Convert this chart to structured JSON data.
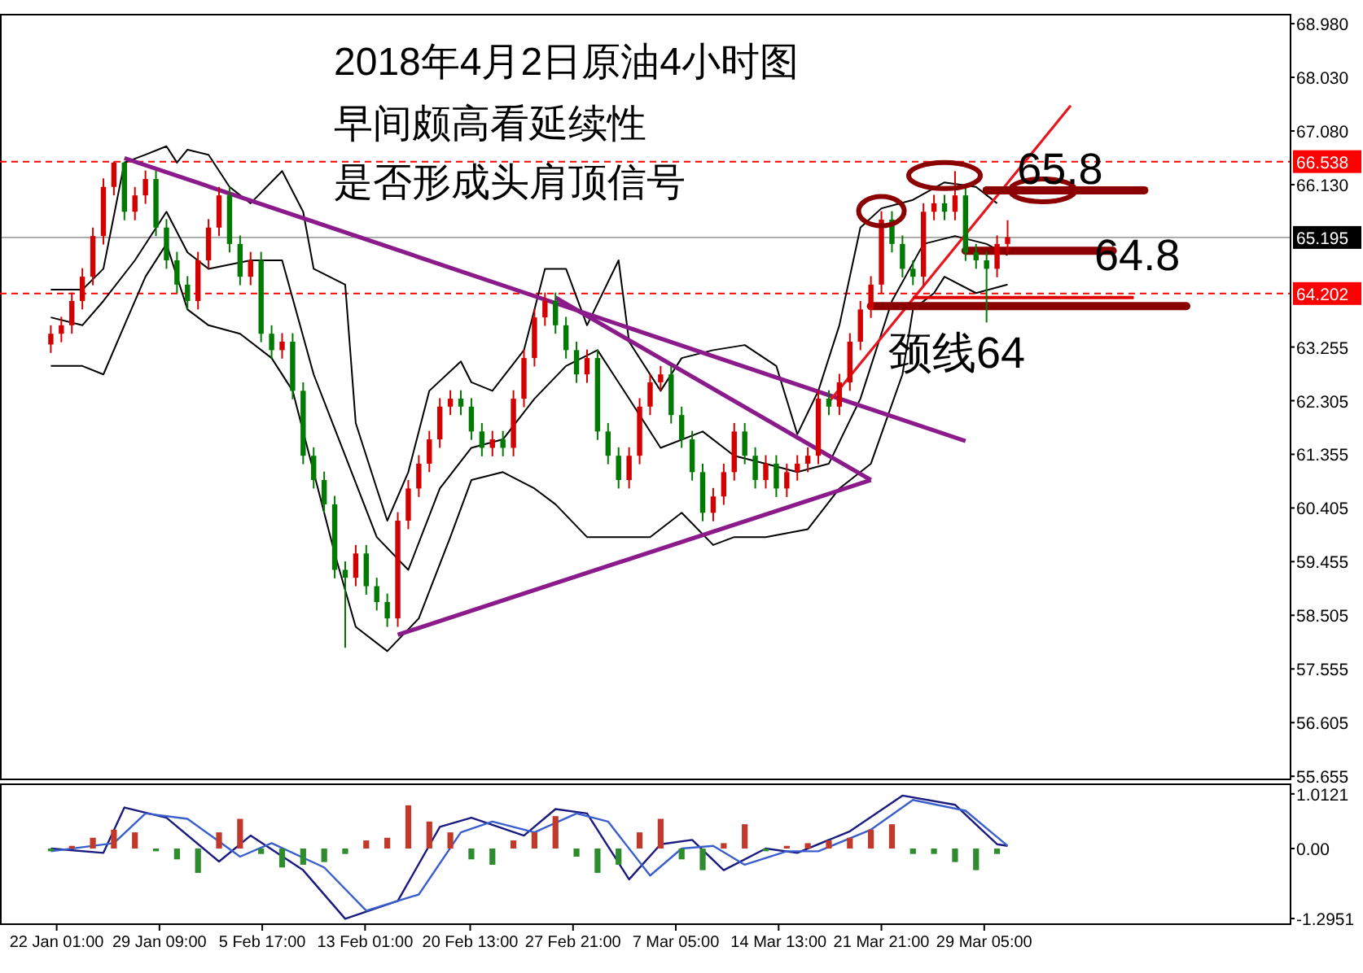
{
  "chart_data": [
    {
      "type": "candlestick",
      "title": "2018年4月2日原油4小时图",
      "annotations": [
        "早间颇高看延续性",
        "是否形成头肩顶信号",
        {
          "text": "65.8",
          "x": "2018-04-05T03:00",
          "y": 66.03
        },
        {
          "text": "64.8",
          "x": "2018-04-07T09:00",
          "y": 64.96
        },
        {
          "text": "颈线64",
          "x": "2018-03-25T15:00",
          "y": 63.98
        }
      ],
      "xlim": [
        "2018-01-18T00:00",
        "2018-04-20T00:00"
      ],
      "ylim": [
        55.6,
        69.14
      ],
      "yticks": [
        {
          "value": 68.98,
          "label": "68.980"
        },
        {
          "value": 68.03,
          "label": "68.030"
        },
        {
          "value": 67.08,
          "label": "67.080"
        },
        {
          "value": 66.13,
          "label": "66.130"
        },
        {
          "value": 63.255,
          "label": "63.255"
        },
        {
          "value": 62.305,
          "label": "62.305"
        },
        {
          "value": 61.355,
          "label": "61.355"
        },
        {
          "value": 60.405,
          "label": "60.405"
        },
        {
          "value": 59.455,
          "label": "59.455"
        },
        {
          "value": 58.505,
          "label": "58.505"
        },
        {
          "value": 57.555,
          "label": "57.555"
        },
        {
          "value": 56.605,
          "label": "56.605"
        },
        {
          "value": 55.655,
          "label": "55.655"
        }
      ],
      "tick_labels": "y",
      "ref_lines": [
        {
          "axis": "y",
          "value": 66.538,
          "label": "66.538",
          "color": "#ff0000",
          "line_style": "dashed"
        },
        {
          "axis": "y",
          "value": 65.195,
          "label": "65.195",
          "color": "#000000",
          "line_style": "solid"
        },
        {
          "axis": "y",
          "value": 64.202,
          "label": "64.202",
          "color": "#ff0000",
          "line_style": "dashed"
        }
      ],
      "series": [
        {
          "x": [
            "2018-01-21T15:00",
            "2018-01-22T09:00",
            "2018-01-23T03:00",
            "2018-01-23T21:00",
            "2018-01-24T15:00",
            "2018-01-25T09:00",
            "2018-01-26T03:00",
            "2018-01-26T21:00",
            "2018-01-27T15:00",
            "2018-01-28T09:00",
            "2018-01-29T03:00",
            "2018-01-29T21:00",
            "2018-01-30T15:00",
            "2018-01-31T09:00",
            "2018-02-01T03:00",
            "2018-02-01T21:00",
            "2018-02-02T15:00",
            "2018-02-03T09:00",
            "2018-02-04T03:00",
            "2018-02-04T21:00",
            "2018-02-05T15:00",
            "2018-02-06T09:00",
            "2018-02-07T03:00",
            "2018-02-07T21:00",
            "2018-02-08T15:00",
            "2018-02-09T09:00",
            "2018-02-10T03:00",
            "2018-02-10T21:00",
            "2018-02-11T15:00",
            "2018-02-12T09:00",
            "2018-02-13T03:00",
            "2018-02-13T21:00",
            "2018-02-14T15:00",
            "2018-02-15T09:00",
            "2018-02-16T03:00",
            "2018-02-16T21:00",
            "2018-02-17T15:00",
            "2018-02-18T09:00",
            "2018-02-19T03:00",
            "2018-02-19T21:00",
            "2018-02-20T15:00",
            "2018-02-21T09:00",
            "2018-02-22T03:00",
            "2018-02-22T21:00",
            "2018-02-23T15:00",
            "2018-02-24T09:00",
            "2018-02-25T03:00",
            "2018-02-25T21:00",
            "2018-02-26T15:00",
            "2018-02-27T09:00",
            "2018-02-28T03:00",
            "2018-02-28T21:00",
            "2018-03-01T15:00",
            "2018-03-02T09:00",
            "2018-03-03T03:00",
            "2018-03-03T21:00",
            "2018-03-04T15:00",
            "2018-03-05T09:00",
            "2018-03-06T03:00",
            "2018-03-06T21:00",
            "2018-03-07T15:00",
            "2018-03-08T09:00",
            "2018-03-09T03:00",
            "2018-03-09T21:00",
            "2018-03-10T15:00",
            "2018-03-11T09:00",
            "2018-03-12T03:00",
            "2018-03-12T21:00",
            "2018-03-13T15:00",
            "2018-03-14T09:00",
            "2018-03-15T03:00",
            "2018-03-15T21:00",
            "2018-03-16T15:00",
            "2018-03-17T09:00",
            "2018-03-18T03:00",
            "2018-03-18T21:00",
            "2018-03-19T15:00",
            "2018-03-20T09:00",
            "2018-03-21T03:00",
            "2018-03-21T21:00",
            "2018-03-22T15:00",
            "2018-03-23T09:00",
            "2018-03-24T03:00",
            "2018-03-24T21:00",
            "2018-03-25T15:00",
            "2018-03-26T09:00",
            "2018-03-27T03:00",
            "2018-03-27T21:00",
            "2018-03-28T15:00",
            "2018-03-29T09:00",
            "2018-03-30T03:00",
            "2018-03-30T21:00"
          ],
          "ohlc": [
            [
              63.3,
              63.64,
              63.15,
              63.49
            ],
            [
              63.49,
              63.79,
              63.34,
              63.64
            ],
            [
              63.64,
              64.22,
              63.49,
              64.07
            ],
            [
              64.07,
              64.65,
              63.92,
              64.5
            ],
            [
              64.5,
              65.37,
              64.35,
              65.22
            ],
            [
              65.22,
              66.24,
              65.07,
              66.09
            ],
            [
              66.09,
              66.54,
              65.94,
              66.52
            ],
            [
              66.52,
              66.54,
              65.5,
              65.65
            ],
            [
              65.65,
              66.09,
              65.5,
              65.94
            ],
            [
              65.94,
              66.38,
              65.79,
              66.23
            ],
            [
              66.23,
              66.38,
              65.22,
              65.37
            ],
            [
              65.37,
              65.52,
              64.64,
              64.79
            ],
            [
              64.79,
              64.94,
              64.21,
              64.36
            ],
            [
              64.36,
              64.51,
              63.92,
              64.07
            ],
            [
              64.07,
              64.94,
              63.92,
              64.79
            ],
            [
              64.79,
              65.52,
              64.64,
              65.37
            ],
            [
              65.37,
              66.09,
              65.22,
              65.94
            ],
            [
              65.94,
              66.09,
              64.93,
              65.08
            ],
            [
              65.08,
              65.23,
              64.35,
              64.5
            ],
            [
              64.5,
              64.94,
              64.35,
              64.79
            ],
            [
              64.79,
              64.94,
              63.34,
              63.49
            ],
            [
              63.49,
              63.64,
              63.05,
              63.2
            ],
            [
              63.2,
              63.5,
              63.05,
              63.35
            ],
            [
              63.35,
              63.5,
              62.33,
              62.48
            ],
            [
              62.48,
              62.63,
              61.18,
              61.33
            ],
            [
              61.33,
              61.48,
              60.75,
              60.9
            ],
            [
              60.9,
              61.05,
              60.32,
              60.47
            ],
            [
              60.47,
              60.62,
              59.16,
              59.31
            ],
            [
              59.31,
              59.46,
              57.93,
              59.17
            ],
            [
              59.17,
              59.75,
              59.02,
              59.6
            ],
            [
              59.6,
              59.75,
              58.87,
              59.02
            ],
            [
              59.02,
              59.17,
              58.59,
              58.74
            ],
            [
              58.74,
              58.89,
              58.3,
              58.45
            ],
            [
              58.45,
              60.33,
              58.3,
              60.18
            ],
            [
              60.18,
              60.9,
              60.03,
              60.75
            ],
            [
              60.75,
              61.34,
              60.6,
              61.19
            ],
            [
              61.19,
              61.77,
              61.04,
              61.62
            ],
            [
              61.62,
              62.35,
              61.47,
              62.2
            ],
            [
              62.2,
              62.49,
              62.05,
              62.34
            ],
            [
              62.34,
              62.49,
              62.05,
              62.2
            ],
            [
              62.2,
              62.35,
              61.61,
              61.76
            ],
            [
              61.76,
              61.91,
              61.32,
              61.47
            ],
            [
              61.47,
              61.77,
              61.32,
              61.62
            ],
            [
              61.62,
              61.77,
              61.32,
              61.47
            ],
            [
              61.47,
              62.49,
              61.32,
              62.34
            ],
            [
              62.34,
              63.21,
              62.19,
              63.06
            ],
            [
              63.06,
              63.93,
              62.91,
              63.78
            ],
            [
              63.78,
              64.22,
              63.63,
              64.07
            ],
            [
              64.07,
              64.22,
              63.49,
              63.64
            ],
            [
              63.64,
              63.79,
              63.05,
              63.2
            ],
            [
              63.2,
              63.35,
              62.62,
              62.77
            ],
            [
              62.77,
              63.21,
              62.62,
              63.06
            ],
            [
              63.06,
              63.21,
              61.61,
              61.76
            ],
            [
              61.76,
              61.91,
              61.18,
              61.33
            ],
            [
              61.33,
              61.48,
              60.75,
              60.9
            ],
            [
              60.9,
              61.48,
              60.75,
              61.33
            ],
            [
              61.33,
              62.35,
              61.18,
              62.2
            ],
            [
              62.2,
              62.78,
              62.05,
              62.63
            ],
            [
              62.63,
              62.92,
              62.48,
              62.77
            ],
            [
              62.77,
              62.92,
              61.9,
              62.05
            ],
            [
              62.05,
              62.2,
              61.47,
              61.62
            ],
            [
              61.62,
              61.77,
              60.89,
              61.04
            ],
            [
              61.04,
              61.19,
              60.17,
              60.32
            ],
            [
              60.32,
              60.76,
              60.17,
              60.61
            ],
            [
              60.61,
              61.19,
              60.46,
              61.04
            ],
            [
              61.04,
              61.91,
              60.89,
              61.76
            ],
            [
              61.76,
              61.91,
              61.18,
              61.33
            ],
            [
              61.33,
              61.48,
              60.75,
              60.9
            ],
            [
              60.9,
              61.34,
              60.75,
              61.19
            ],
            [
              61.19,
              61.34,
              60.6,
              60.75
            ],
            [
              60.75,
              61.19,
              60.6,
              61.04
            ],
            [
              61.04,
              61.34,
              60.89,
              61.19
            ],
            [
              61.19,
              61.48,
              61.04,
              61.33
            ],
            [
              61.33,
              62.49,
              61.18,
              62.34
            ],
            [
              62.34,
              62.49,
              62.05,
              62.2
            ],
            [
              62.2,
              62.78,
              62.05,
              62.63
            ],
            [
              62.63,
              63.5,
              62.48,
              63.35
            ],
            [
              63.35,
              64.07,
              63.2,
              63.92
            ],
            [
              63.92,
              64.51,
              63.77,
              64.36
            ],
            [
              64.36,
              65.66,
              64.21,
              65.51
            ],
            [
              65.51,
              65.66,
              64.93,
              65.08
            ],
            [
              65.08,
              65.23,
              64.49,
              64.64
            ],
            [
              64.64,
              64.79,
              64.35,
              64.5
            ],
            [
              64.5,
              65.8,
              64.35,
              65.65
            ],
            [
              65.65,
              65.95,
              65.5,
              65.8
            ],
            [
              65.8,
              65.95,
              65.5,
              65.65
            ],
            [
              65.65,
              66.37,
              65.5,
              65.94
            ],
            [
              65.94,
              66.09,
              64.78,
              64.93
            ],
            [
              64.93,
              65.08,
              64.64,
              64.79
            ],
            [
              64.79,
              64.94,
              63.69,
              64.64
            ],
            [
              64.64,
              65.23,
              64.49,
              65.08
            ],
            [
              65.08,
              65.5,
              64.93,
              65.2
            ]
          ],
          "colors": [
            "#d40000",
            "#d40000",
            "#d40000",
            "#d40000",
            "#d40000",
            "#d40000",
            "#d40000",
            "#007a00",
            "#d40000",
            "#d40000",
            "#007a00",
            "#007a00",
            "#007a00",
            "#007a00",
            "#d40000",
            "#d40000",
            "#d40000",
            "#007a00",
            "#007a00",
            "#d40000",
            "#007a00",
            "#007a00",
            "#d40000",
            "#007a00",
            "#007a00",
            "#007a00",
            "#007a00",
            "#007a00",
            "#007a00",
            "#d40000",
            "#007a00",
            "#007a00",
            "#007a00",
            "#d40000",
            "#d40000",
            "#d40000",
            "#d40000",
            "#d40000",
            "#d40000",
            "#007a00",
            "#007a00",
            "#007a00",
            "#d40000",
            "#007a00",
            "#d40000",
            "#d40000",
            "#d40000",
            "#d40000",
            "#007a00",
            "#007a00",
            "#007a00",
            "#d40000",
            "#007a00",
            "#007a00",
            "#007a00",
            "#d40000",
            "#d40000",
            "#d40000",
            "#d40000",
            "#007a00",
            "#007a00",
            "#007a00",
            "#007a00",
            "#d40000",
            "#d40000",
            "#d40000",
            "#007a00",
            "#007a00",
            "#d40000",
            "#007a00",
            "#d40000",
            "#d40000",
            "#d40000",
            "#d40000",
            "#007a00",
            "#d40000",
            "#d40000",
            "#d40000",
            "#d40000",
            "#d40000",
            "#007a00",
            "#007a00",
            "#007a00",
            "#d40000",
            "#d40000",
            "#007a00",
            "#d40000",
            "#007a00",
            "#007a00",
            "#007a00",
            "#d40000",
            "#d40000"
          ]
        },
        {
          "type": "line",
          "color": "#000000",
          "x": [
            "2018-01-21T15:00",
            "2018-01-23T21:00",
            "2018-01-25T09:00",
            "2018-01-26T21:00",
            "2018-01-28T09:00",
            "2018-01-29T21:00",
            "2018-01-30T15:00",
            "2018-01-31T09:00",
            "2018-02-01T21:00",
            "2018-02-03T09:00",
            "2018-02-04T21:00",
            "2018-02-07T03:00",
            "2018-02-08T15:00",
            "2018-02-09T09:00",
            "2018-02-11T15:00",
            "2018-02-12T09:00",
            "2018-02-13T21:00",
            "2018-02-14T15:00",
            "2018-02-16T03:00",
            "2018-02-17T15:00",
            "2018-02-19T21:00",
            "2018-02-20T15:00",
            "2018-02-22T03:00",
            "2018-02-24T09:00",
            "2018-02-25T21:00",
            "2018-02-27T09:00",
            "2018-02-28T21:00",
            "2018-03-03T03:00",
            "2018-03-03T21:00",
            "2018-03-06T03:00",
            "2018-03-07T15:00",
            "2018-03-09T21:00",
            "2018-03-12T03:00",
            "2018-03-14T09:00",
            "2018-03-15T21:00",
            "2018-03-17T09:00",
            "2018-03-18T21:00",
            "2018-03-20T09:00",
            "2018-03-21T21:00",
            "2018-03-24T03:00",
            "2018-03-26T09:00",
            "2018-03-28T15:00",
            "2018-03-30T03:00"
          ],
          "values": [
            64.27,
            64.27,
            64.64,
            66.52,
            66.66,
            66.81,
            66.52,
            66.75,
            66.66,
            66.09,
            65.8,
            66.37,
            65.65,
            64.64,
            64.36,
            61.91,
            60.75,
            60.18,
            61.04,
            62.48,
            63.0,
            62.63,
            62.48,
            63.2,
            64.64,
            64.64,
            63.64,
            64.79,
            63.35,
            62.48,
            63.06,
            63.2,
            63.29,
            62.92,
            61.71,
            62.48,
            63.64,
            65.37,
            65.71,
            65.86,
            66.17,
            66.09,
            65.8
          ]
        },
        {
          "type": "line",
          "color": "#000000",
          "x": [
            "2018-01-21T15:00",
            "2018-01-23T21:00",
            "2018-01-25T09:00",
            "2018-01-27T15:00",
            "2018-01-29T21:00",
            "2018-01-31T09:00",
            "2018-02-01T21:00",
            "2018-02-04T21:00",
            "2018-02-07T03:00",
            "2018-02-09T09:00",
            "2018-02-11T15:00",
            "2018-02-13T21:00",
            "2018-02-16T03:00",
            "2018-02-18T09:00",
            "2018-02-20T15:00",
            "2018-02-22T21:00",
            "2018-02-25T03:00",
            "2018-02-27T09:00",
            "2018-03-01T15:00",
            "2018-03-03T21:00",
            "2018-03-06T03:00",
            "2018-03-09T03:00",
            "2018-03-11T09:00",
            "2018-03-13T15:00",
            "2018-03-15T21:00",
            "2018-03-18T03:00",
            "2018-03-20T09:00",
            "2018-03-22T15:00",
            "2018-03-24T21:00",
            "2018-03-27T03:00",
            "2018-03-29T09:00",
            "2018-03-30T21:00"
          ],
          "values": [
            63.78,
            63.64,
            64.07,
            64.79,
            65.65,
            64.93,
            64.64,
            64.79,
            64.79,
            62.77,
            61.33,
            59.89,
            59.31,
            60.75,
            61.47,
            61.62,
            62.34,
            62.92,
            63.2,
            62.34,
            61.47,
            61.76,
            61.33,
            61.19,
            61.04,
            61.19,
            62.34,
            64.07,
            65.08,
            65.22,
            65.08,
            64.88
          ]
        },
        {
          "type": "line",
          "color": "#000000",
          "x": [
            "2018-01-21T15:00",
            "2018-01-23T21:00",
            "2018-01-25T09:00",
            "2018-01-26T21:00",
            "2018-01-28T09:00",
            "2018-01-29T21:00",
            "2018-01-31T09:00",
            "2018-02-01T21:00",
            "2018-02-04T03:00",
            "2018-02-06T09:00",
            "2018-02-07T21:00",
            "2018-02-09T09:00",
            "2018-02-10T21:00",
            "2018-02-12T09:00",
            "2018-02-14T15:00",
            "2018-02-16T21:00",
            "2018-02-19T03:00",
            "2018-02-20T15:00",
            "2018-02-22T21:00",
            "2018-02-25T03:00",
            "2018-02-26T15:00",
            "2018-02-28T21:00",
            "2018-03-02T09:00",
            "2018-03-05T09:00",
            "2018-03-07T15:00",
            "2018-03-09T21:00",
            "2018-03-11T09:00",
            "2018-03-13T15:00",
            "2018-03-16T15:00",
            "2018-03-18T21:00",
            "2018-03-21T03:00",
            "2018-03-23T09:00",
            "2018-03-24T03:00",
            "2018-03-25T15:00",
            "2018-03-26T09:00",
            "2018-03-28T15:00",
            "2018-03-30T21:00"
          ],
          "values": [
            62.92,
            62.92,
            62.77,
            63.64,
            64.5,
            65.08,
            63.92,
            63.64,
            63.49,
            63.06,
            62.48,
            61.04,
            59.6,
            58.3,
            57.87,
            58.45,
            59.89,
            60.9,
            61.04,
            60.75,
            60.47,
            59.89,
            59.89,
            59.89,
            60.32,
            59.75,
            59.89,
            59.89,
            60.03,
            60.75,
            61.19,
            62.77,
            63.92,
            64.21,
            64.5,
            64.21,
            64.36
          ]
        },
        {
          "type": "line",
          "color": "#8b1a8b",
          "x": [
            "2018-01-26T21:00",
            "2018-03-27T21:00"
          ],
          "values": [
            66.6,
            61.59
          ]
        },
        {
          "type": "line",
          "color": "#8b1a8b",
          "x": [
            "2018-02-26T15:00",
            "2018-03-21T03:00"
          ],
          "values": [
            64.13,
            60.9
          ]
        },
        {
          "type": "line",
          "color": "#8b1a8b",
          "x": [
            "2018-02-15T09:00",
            "2018-03-21T03:00"
          ],
          "values": [
            58.16,
            60.9
          ]
        },
        {
          "type": "line",
          "color": "#e8141e",
          "x": [
            "2018-03-18T03:00",
            "2018-04-04T09:00"
          ],
          "values": [
            62.28,
            67.53
          ]
        },
        {
          "type": "line",
          "color": "#8b0000",
          "x": [
            "2018-03-29T09:00",
            "2018-04-09T15:00"
          ],
          "values": [
            66.03,
            66.03
          ]
        },
        {
          "type": "line",
          "color": "#8b0000",
          "x": [
            "2018-03-27T21:00",
            "2018-04-07T09:00"
          ],
          "values": [
            64.96,
            64.96
          ]
        },
        {
          "type": "line",
          "color": "#8b0000",
          "x": [
            "2018-03-21T03:00",
            "2018-04-12T15:00"
          ],
          "values": [
            63.98,
            63.98
          ]
        },
        {
          "type": "line",
          "color": "#e00000",
          "x": [
            "2018-03-24T03:00",
            "2018-04-08T21:00"
          ],
          "values": [
            64.13,
            64.13
          ]
        }
      ]
    },
    {
      "type": "bar",
      "xlim": [
        "2018-01-18T00:00",
        "2018-04-20T00:00"
      ],
      "ylim": [
        -1.4,
        1.19
      ],
      "yticks": [
        {
          "value": 1.0121,
          "label": "1.0121"
        },
        {
          "value": 0,
          "label": "0.00"
        },
        {
          "value": -1.2951,
          "label": "-1.2951"
        }
      ],
      "xticks": [
        {
          "value": "2018-01-22T01:00",
          "label": "22 Jan 01:00"
        },
        {
          "value": "2018-01-29T09:00",
          "label": "29 Jan 09:00"
        },
        {
          "value": "2018-02-05T17:00",
          "label": "5 Feb 17:00"
        },
        {
          "value": "2018-02-13T01:00",
          "label": "13 Feb 01:00"
        },
        {
          "value": "2018-02-20T13:00",
          "label": "20 Feb 13:00"
        },
        {
          "value": "2018-02-27T21:00",
          "label": "27 Feb 21:00"
        },
        {
          "value": "2018-03-07T05:00",
          "label": "7 Mar 05:00"
        },
        {
          "value": "2018-03-14T13:00",
          "label": "14 Mar 13:00"
        },
        {
          "value": "2018-03-21T21:00",
          "label": "21 Mar 21:00"
        },
        {
          "value": "2018-03-29T05:00",
          "label": "29 Mar 05:00"
        }
      ],
      "series": [
        {
          "x": [
            "2018-01-21T15:00",
            "2018-01-23T03:00",
            "2018-01-24T15:00",
            "2018-01-26T03:00",
            "2018-01-27T15:00",
            "2018-01-29T03:00",
            "2018-01-30T15:00",
            "2018-02-01T03:00",
            "2018-02-02T15:00",
            "2018-02-04T03:00",
            "2018-02-05T15:00",
            "2018-02-07T03:00",
            "2018-02-08T15:00",
            "2018-02-10T03:00",
            "2018-02-11T15:00",
            "2018-02-13T03:00",
            "2018-02-14T15:00",
            "2018-02-16T03:00",
            "2018-02-17T15:00",
            "2018-02-19T03:00",
            "2018-02-20T15:00",
            "2018-02-22T03:00",
            "2018-02-23T15:00",
            "2018-02-25T03:00",
            "2018-02-26T15:00",
            "2018-02-28T03:00",
            "2018-03-01T15:00",
            "2018-03-03T03:00",
            "2018-03-04T15:00",
            "2018-03-06T03:00",
            "2018-03-07T15:00",
            "2018-03-09T03:00",
            "2018-03-10T15:00",
            "2018-03-12T03:00",
            "2018-03-13T15:00",
            "2018-03-15T03:00",
            "2018-03-16T15:00",
            "2018-03-18T03:00",
            "2018-03-19T15:00",
            "2018-03-21T03:00",
            "2018-03-22T15:00",
            "2018-03-24T03:00",
            "2018-03-25T15:00",
            "2018-03-27T03:00",
            "2018-03-28T15:00",
            "2018-03-30T03:00"
          ],
          "values": [
            -0.05,
            0.05,
            0.2,
            0.35,
            0.3,
            -0.05,
            -0.2,
            -0.45,
            0.3,
            0.55,
            -0.1,
            -0.35,
            -0.3,
            -0.25,
            -0.1,
            0.15,
            0.2,
            0.8,
            0.5,
            0.3,
            -0.2,
            -0.3,
            0.15,
            0.3,
            0.6,
            -0.15,
            -0.45,
            -0.3,
            0.3,
            0.55,
            -0.2,
            -0.4,
            0.1,
            0.45,
            -0.05,
            0.05,
            0.1,
            0.15,
            0.2,
            0.35,
            0.45,
            -0.1,
            -0.1,
            -0.25,
            -0.4,
            -0.1
          ],
          "colors": [
            "#2e8b2e",
            "#c0392b",
            "#c0392b",
            "#c0392b",
            "#c0392b",
            "#2e8b2e",
            "#2e8b2e",
            "#2e8b2e",
            "#c0392b",
            "#c0392b",
            "#2e8b2e",
            "#2e8b2e",
            "#2e8b2e",
            "#2e8b2e",
            "#2e8b2e",
            "#c0392b",
            "#c0392b",
            "#c0392b",
            "#c0392b",
            "#c0392b",
            "#2e8b2e",
            "#2e8b2e",
            "#c0392b",
            "#c0392b",
            "#c0392b",
            "#2e8b2e",
            "#2e8b2e",
            "#2e8b2e",
            "#c0392b",
            "#c0392b",
            "#2e8b2e",
            "#2e8b2e",
            "#c0392b",
            "#c0392b",
            "#2e8b2e",
            "#c0392b",
            "#c0392b",
            "#c0392b",
            "#c0392b",
            "#c0392b",
            "#c0392b",
            "#2e8b2e",
            "#2e8b2e",
            "#2e8b2e",
            "#2e8b2e",
            "#2e8b2e"
          ]
        },
        {
          "type": "line",
          "color": "#1a1a80",
          "x": [
            "2018-01-21T15:00",
            "2018-01-25T09:00",
            "2018-01-26T21:00",
            "2018-01-29T21:00",
            "2018-02-02T15:00",
            "2018-02-04T21:00",
            "2018-02-08T15:00",
            "2018-02-11T15:00",
            "2018-02-15T09:00",
            "2018-02-18T09:00",
            "2018-02-20T15:00",
            "2018-02-24T09:00",
            "2018-02-26T15:00",
            "2018-02-28T21:00",
            "2018-03-03T21:00",
            "2018-03-06T03:00",
            "2018-03-08T09:00",
            "2018-03-10T15:00",
            "2018-03-13T15:00",
            "2018-03-15T21:00",
            "2018-03-19T15:00",
            "2018-03-23T09:00",
            "2018-03-27T03:00",
            "2018-03-30T03:00",
            "2018-03-30T21:00"
          ],
          "values": [
            0,
            -0.08,
            0.76,
            0.57,
            -0.24,
            0.24,
            -0.4,
            -1.3,
            -0.97,
            0.4,
            0.57,
            0.24,
            0.73,
            0.65,
            -0.57,
            0.08,
            0.16,
            -0.4,
            0,
            -0.08,
            0.32,
            0.98,
            0.81,
            0.08,
            0.05
          ]
        },
        {
          "type": "line",
          "color": "#3a5fcd",
          "x": [
            "2018-01-21T15:00",
            "2018-01-26T03:00",
            "2018-01-28T09:00",
            "2018-01-31T09:00",
            "2018-02-04T03:00",
            "2018-02-06T09:00",
            "2018-02-10T03:00",
            "2018-02-13T03:00",
            "2018-02-16T21:00",
            "2018-02-19T21:00",
            "2018-02-22T03:00",
            "2018-02-25T03:00",
            "2018-02-28T03:00",
            "2018-03-02T09:00",
            "2018-03-05T09:00",
            "2018-03-07T15:00",
            "2018-03-09T21:00",
            "2018-03-12T03:00",
            "2018-03-15T03:00",
            "2018-03-17T09:00",
            "2018-03-21T03:00",
            "2018-03-24T03:00",
            "2018-03-27T21:00",
            "2018-03-30T21:00"
          ],
          "values": [
            -0.05,
            0.1,
            0.65,
            0.55,
            -0.15,
            0.1,
            -0.35,
            -1.15,
            -0.85,
            0.3,
            0.5,
            0.3,
            0.65,
            0.5,
            -0.5,
            0,
            0.05,
            -0.3,
            -0.05,
            -0.05,
            0.35,
            0.9,
            0.7,
            0.05
          ]
        }
      ]
    }
  ]
}
